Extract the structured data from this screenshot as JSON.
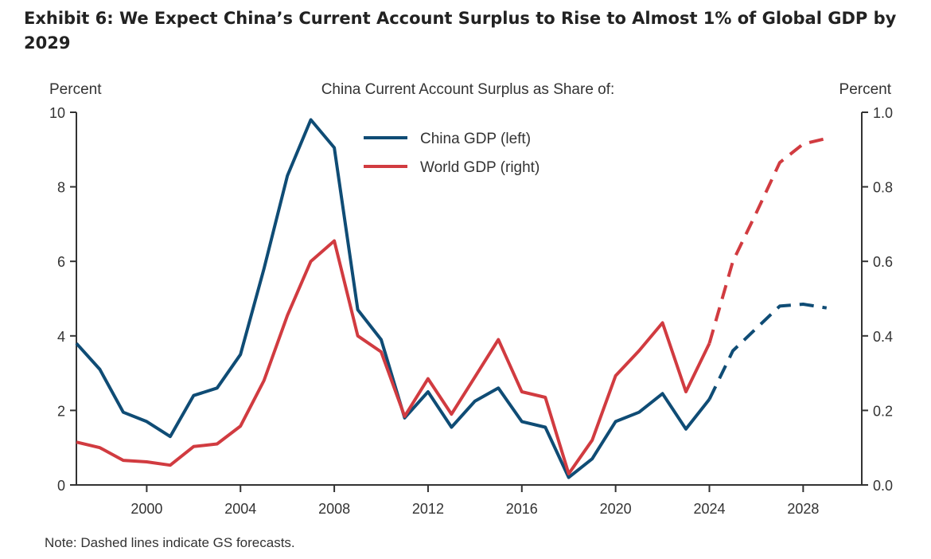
{
  "title": "Exhibit 6: We Expect China’s Current Account Surplus to Rise to Almost 1% of Global GDP by 2029",
  "chart_data": {
    "type": "line",
    "subtitle": "China Current Account Surplus as Share of:",
    "ylabel_left": "Percent",
    "ylabel_right": "Percent",
    "note": "Note: Dashed lines indicate GS forecasts.",
    "xlim": [
      1997,
      2030.5
    ],
    "ylim_left": [
      0,
      10
    ],
    "ylim_right": [
      0,
      1.0
    ],
    "xticks": [
      2000,
      2004,
      2008,
      2012,
      2016,
      2020,
      2024,
      2028
    ],
    "yticks_left": [
      "0",
      "2",
      "4",
      "6",
      "8",
      "10"
    ],
    "yticks_right": [
      "0.0",
      "0.2",
      "0.4",
      "0.6",
      "0.8",
      "1.0"
    ],
    "grid": false,
    "legend_placement": "top-center",
    "forecast_from": 2024,
    "x": [
      1997,
      1998,
      1999,
      2000,
      2001,
      2002,
      2003,
      2004,
      2005,
      2006,
      2007,
      2008,
      2009,
      2010,
      2011,
      2012,
      2013,
      2014,
      2015,
      2016,
      2017,
      2018,
      2019,
      2020,
      2021,
      2022,
      2023,
      2024,
      2025,
      2026,
      2027,
      2028,
      2029
    ],
    "series": [
      {
        "name": "China GDP (left)",
        "axis": "left",
        "color": "#0f4c75",
        "values": [
          3.8,
          3.1,
          1.95,
          1.7,
          1.3,
          2.4,
          2.6,
          3.5,
          5.8,
          8.3,
          9.8,
          9.05,
          4.7,
          3.9,
          1.8,
          2.5,
          1.55,
          2.25,
          2.6,
          1.7,
          1.55,
          0.2,
          0.7,
          1.7,
          1.95,
          2.45,
          1.5,
          2.3,
          3.6,
          4.2,
          4.8,
          4.85,
          4.75
        ]
      },
      {
        "name": "World GDP (right)",
        "axis": "right",
        "color": "#d13b40",
        "values": [
          0.115,
          0.1,
          0.066,
          0.062,
          0.053,
          0.103,
          0.11,
          0.158,
          0.28,
          0.455,
          0.6,
          0.655,
          0.4,
          0.357,
          0.184,
          0.285,
          0.19,
          0.29,
          0.39,
          0.25,
          0.235,
          0.03,
          0.12,
          0.293,
          0.36,
          0.435,
          0.25,
          0.38,
          0.6,
          0.73,
          0.865,
          0.915,
          0.93
        ]
      }
    ]
  }
}
